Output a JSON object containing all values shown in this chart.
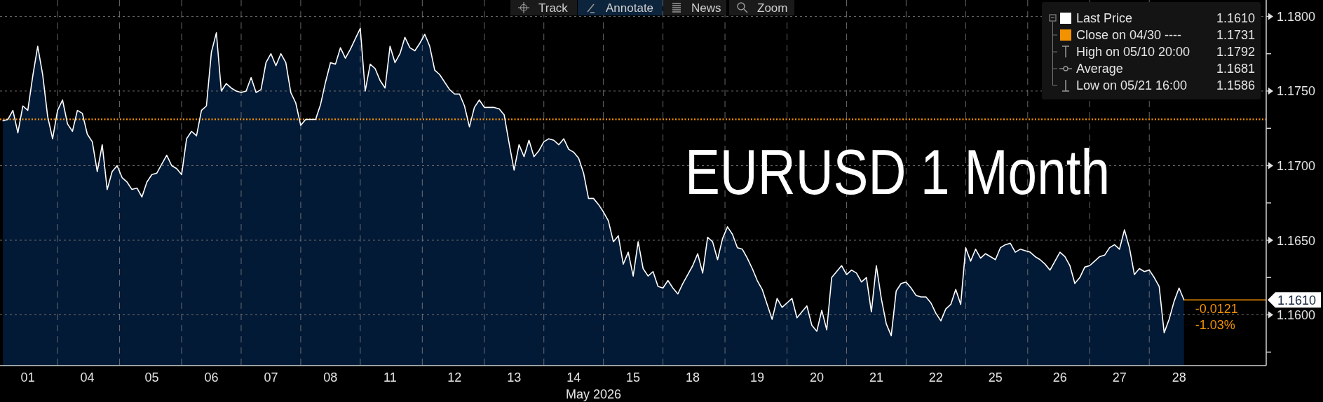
{
  "chart_data": {
    "type": "area",
    "title": "EURUSD 1 Month",
    "xlabel": "May 2026",
    "categories": [
      null,
      null,
      null,
      null,
      null,
      "01",
      null,
      null,
      null,
      null,
      null,
      null,
      null,
      null,
      null,
      null,
      null,
      "04",
      null,
      null,
      null,
      null,
      null,
      null,
      null,
      null,
      null,
      null,
      null,
      null,
      "05",
      null,
      null,
      null,
      null,
      null,
      null,
      null,
      null,
      null,
      null,
      null,
      "06",
      null,
      null,
      null,
      null,
      null,
      null,
      null,
      null,
      null,
      null,
      null,
      "07",
      null,
      null,
      null,
      null,
      null,
      null,
      null,
      null,
      null,
      null,
      null,
      "08",
      null,
      null,
      null,
      null,
      null,
      null,
      null,
      null,
      null,
      null,
      null,
      "11",
      null,
      null,
      null,
      null,
      null,
      null,
      null,
      null,
      null,
      null,
      null,
      null,
      "12",
      null,
      null,
      null,
      null,
      null,
      null,
      null,
      null,
      null,
      null,
      null,
      "13",
      null,
      null,
      null,
      null,
      null,
      null,
      null,
      null,
      null,
      null,
      null,
      "14",
      null,
      null,
      null,
      null,
      null,
      null,
      null,
      null,
      null,
      null,
      null,
      "15",
      null,
      null,
      null,
      null,
      null,
      null,
      null,
      null,
      null,
      null,
      null,
      "18",
      null,
      null,
      null,
      null,
      null,
      null,
      null,
      null,
      null,
      null,
      null,
      null,
      "19",
      null,
      null,
      null,
      null,
      null,
      null,
      null,
      null,
      null,
      null,
      null,
      "20",
      null,
      null,
      null,
      null,
      null,
      null,
      null,
      null,
      null,
      null,
      null,
      "21",
      null,
      null,
      null,
      null,
      null,
      null,
      null,
      null,
      null,
      null,
      null,
      "22",
      null,
      null,
      null,
      null,
      null,
      null,
      null,
      null,
      null,
      null,
      null,
      "25",
      null,
      null,
      null,
      null,
      null,
      null,
      null,
      null,
      null,
      null,
      null,
      null,
      "26",
      null,
      null,
      null,
      null,
      null,
      null,
      null,
      null,
      null,
      null,
      null,
      "27",
      null,
      null,
      null,
      null,
      null,
      null,
      null,
      null,
      null,
      null,
      null,
      "28",
      null
    ],
    "ylim": [
      1.1566,
      1.1811
    ],
    "yticks": [
      {
        "value": 1.16,
        "label": "1.1600"
      },
      {
        "value": 1.165,
        "label": "1.1650"
      },
      {
        "value": 1.17,
        "label": "1.1700"
      },
      {
        "value": 1.175,
        "label": "1.1750"
      },
      {
        "value": 1.18,
        "label": "1.1800"
      }
    ],
    "grid": true,
    "legend": "top right",
    "ref_lines": [
      {
        "axis": "y",
        "value": 1.1731,
        "label": "Close on 04/30 ----",
        "color": "#f39200",
        "line_style": "dotted"
      }
    ],
    "annotations": [
      "Track",
      "Annotate",
      "News",
      "Zoom",
      "1.1610",
      "1.1731",
      "High on 05/10 20:00",
      "1.1792",
      "Average",
      "1.1681",
      "Low on 05/21 16:00",
      "1.1586",
      "-0.0121",
      "-1.03%",
      "1.1610"
    ],
    "series": [
      {
        "name": "Last Price",
        "color": "#ffffff",
        "values": [
          1.173,
          1.1731,
          1.1737,
          1.1722,
          1.174,
          1.1737,
          1.176,
          1.178,
          1.1761,
          1.1733,
          1.1718,
          1.1737,
          1.1744,
          1.1728,
          1.1723,
          1.1737,
          1.1735,
          1.1721,
          1.1716,
          1.1696,
          1.1714,
          1.1684,
          1.1696,
          1.17,
          1.1692,
          1.1689,
          1.1684,
          1.1685,
          1.1679,
          1.1689,
          1.1694,
          1.1695,
          1.1701,
          1.1707,
          1.17,
          1.1698,
          1.1694,
          1.1718,
          1.1723,
          1.172,
          1.1737,
          1.174,
          1.1776,
          1.1789,
          1.175,
          1.1755,
          1.1752,
          1.175,
          1.1749,
          1.175,
          1.1759,
          1.1749,
          1.1751,
          1.1769,
          1.1775,
          1.1767,
          1.1775,
          1.1769,
          1.1749,
          1.1742,
          1.1727,
          1.1731,
          1.1731,
          1.1731,
          1.1741,
          1.1756,
          1.1769,
          1.1768,
          1.1779,
          1.1772,
          1.1778,
          1.1785,
          1.1792,
          1.175,
          1.1768,
          1.1765,
          1.1757,
          1.1752,
          1.178,
          1.1769,
          1.1775,
          1.1786,
          1.1779,
          1.1777,
          1.1782,
          1.1788,
          1.178,
          1.1764,
          1.1761,
          1.1756,
          1.1751,
          1.1748,
          1.1748,
          1.174,
          1.1726,
          1.1739,
          1.1744,
          1.1739,
          1.1739,
          1.1739,
          1.1738,
          1.1734,
          1.1715,
          1.1697,
          1.1714,
          1.1706,
          1.1717,
          1.1706,
          1.171,
          1.1716,
          1.1718,
          1.1717,
          1.1714,
          1.1718,
          1.1711,
          1.1709,
          1.1705,
          1.1695,
          1.1678,
          1.1678,
          1.1674,
          1.1669,
          1.1663,
          1.1649,
          1.1653,
          1.1634,
          1.1642,
          1.1626,
          1.1649,
          1.1631,
          1.1626,
          1.1629,
          1.1619,
          1.1618,
          1.1623,
          1.1618,
          1.1614,
          1.1621,
          1.1627,
          1.1633,
          1.1641,
          1.1628,
          1.1652,
          1.1649,
          1.1637,
          1.1651,
          1.1659,
          1.1654,
          1.1645,
          1.1644,
          1.1638,
          1.1631,
          1.1623,
          1.1617,
          1.1607,
          1.1597,
          1.1611,
          1.1605,
          1.1608,
          1.1611,
          1.1598,
          1.1602,
          1.1606,
          1.1593,
          1.1589,
          1.1603,
          1.159,
          1.1625,
          1.1629,
          1.1633,
          1.1627,
          1.163,
          1.1628,
          1.1622,
          1.1625,
          1.1602,
          1.1633,
          1.1611,
          1.1594,
          1.1586,
          1.1616,
          1.1621,
          1.1622,
          1.1618,
          1.1613,
          1.1612,
          1.1612,
          1.1608,
          1.1601,
          1.1596,
          1.1604,
          1.1607,
          1.1617,
          1.1607,
          1.1645,
          1.1636,
          1.1644,
          1.1638,
          1.1641,
          1.1639,
          1.1637,
          1.1645,
          1.1647,
          1.1648,
          1.1642,
          1.1644,
          1.1643,
          1.1642,
          1.1639,
          1.1637,
          1.1634,
          1.163,
          1.1636,
          1.1642,
          1.1639,
          1.1633,
          1.1621,
          1.1625,
          1.1632,
          1.1633,
          1.1636,
          1.1639,
          1.164,
          1.1645,
          1.1647,
          1.1644,
          1.1657,
          1.1645,
          1.1627,
          1.1631,
          1.1629,
          1.163,
          1.1625,
          1.1619,
          1.1588,
          1.1597,
          1.1609,
          1.1618,
          1.161
        ]
      }
    ]
  }
}
